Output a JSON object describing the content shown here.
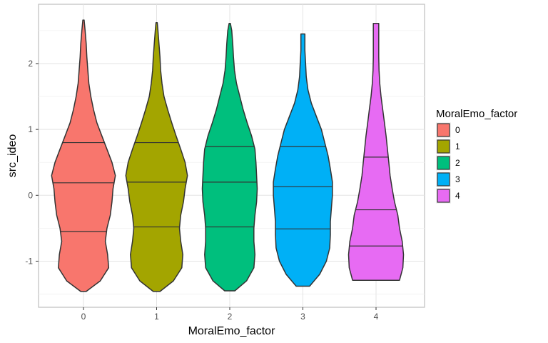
{
  "chart_data": {
    "type": "violin",
    "xlabel": "MoralEmo_factor",
    "ylabel": "src_ideo",
    "categories": [
      "0",
      "1",
      "2",
      "3",
      "4"
    ],
    "yticks": [
      -1,
      0,
      1,
      2
    ],
    "ylim": [
      -1.7,
      2.9
    ],
    "grid": true,
    "legend": {
      "title": "MoralEmo_factor",
      "position": "right",
      "entries": [
        "0",
        "1",
        "2",
        "3",
        "4"
      ]
    },
    "series": [
      {
        "category": "0",
        "color": "#F8766D",
        "min": -1.46,
        "max": 2.66,
        "quantiles": [
          -0.55,
          0.19,
          0.8
        ],
        "profile": [
          [
            -1.46,
            0.08
          ],
          [
            -1.3,
            0.5
          ],
          [
            -1.1,
            0.75
          ],
          [
            -0.9,
            0.72
          ],
          [
            -0.7,
            0.65
          ],
          [
            -0.5,
            0.7
          ],
          [
            -0.3,
            0.8
          ],
          [
            -0.1,
            0.85
          ],
          [
            0.1,
            0.88
          ],
          [
            0.3,
            0.95
          ],
          [
            0.5,
            0.85
          ],
          [
            0.7,
            0.7
          ],
          [
            0.9,
            0.55
          ],
          [
            1.1,
            0.4
          ],
          [
            1.3,
            0.3
          ],
          [
            1.5,
            0.22
          ],
          [
            1.7,
            0.16
          ],
          [
            1.9,
            0.13
          ],
          [
            2.1,
            0.1
          ],
          [
            2.3,
            0.08
          ],
          [
            2.5,
            0.05
          ],
          [
            2.66,
            0.02
          ]
        ]
      },
      {
        "category": "1",
        "color": "#A3A500",
        "min": -1.46,
        "max": 2.62,
        "quantiles": [
          -0.48,
          0.2,
          0.8
        ],
        "profile": [
          [
            -1.46,
            0.1
          ],
          [
            -1.3,
            0.5
          ],
          [
            -1.1,
            0.75
          ],
          [
            -0.9,
            0.78
          ],
          [
            -0.7,
            0.72
          ],
          [
            -0.5,
            0.68
          ],
          [
            -0.3,
            0.72
          ],
          [
            -0.1,
            0.8
          ],
          [
            0.1,
            0.85
          ],
          [
            0.3,
            0.92
          ],
          [
            0.5,
            0.85
          ],
          [
            0.7,
            0.72
          ],
          [
            0.9,
            0.58
          ],
          [
            1.1,
            0.45
          ],
          [
            1.3,
            0.33
          ],
          [
            1.5,
            0.22
          ],
          [
            1.7,
            0.16
          ],
          [
            1.9,
            0.12
          ],
          [
            2.1,
            0.1
          ],
          [
            2.3,
            0.07
          ],
          [
            2.5,
            0.04
          ],
          [
            2.62,
            0.02
          ]
        ]
      },
      {
        "category": "2",
        "color": "#00BF7D",
        "min": -1.45,
        "max": 2.61,
        "quantiles": [
          -0.48,
          0.2,
          0.74
        ],
        "profile": [
          [
            -1.45,
            0.15
          ],
          [
            -1.3,
            0.5
          ],
          [
            -1.1,
            0.72
          ],
          [
            -0.9,
            0.75
          ],
          [
            -0.7,
            0.72
          ],
          [
            -0.5,
            0.72
          ],
          [
            -0.3,
            0.75
          ],
          [
            -0.1,
            0.8
          ],
          [
            0.1,
            0.82
          ],
          [
            0.3,
            0.8
          ],
          [
            0.5,
            0.78
          ],
          [
            0.7,
            0.75
          ],
          [
            0.9,
            0.65
          ],
          [
            1.1,
            0.52
          ],
          [
            1.3,
            0.4
          ],
          [
            1.5,
            0.3
          ],
          [
            1.7,
            0.2
          ],
          [
            1.9,
            0.14
          ],
          [
            2.1,
            0.11
          ],
          [
            2.3,
            0.09
          ],
          [
            2.5,
            0.06
          ],
          [
            2.61,
            0.02
          ]
        ]
      },
      {
        "category": "3",
        "color": "#00B0F6",
        "min": -1.38,
        "max": 2.45,
        "quantiles": [
          -0.51,
          0.13,
          0.74
        ],
        "profile": [
          [
            -1.38,
            0.2
          ],
          [
            -1.2,
            0.5
          ],
          [
            -1.0,
            0.7
          ],
          [
            -0.8,
            0.8
          ],
          [
            -0.6,
            0.82
          ],
          [
            -0.4,
            0.82
          ],
          [
            -0.2,
            0.85
          ],
          [
            0.0,
            0.88
          ],
          [
            0.2,
            0.88
          ],
          [
            0.4,
            0.82
          ],
          [
            0.6,
            0.75
          ],
          [
            0.8,
            0.65
          ],
          [
            1.0,
            0.55
          ],
          [
            1.2,
            0.4
          ],
          [
            1.4,
            0.25
          ],
          [
            1.6,
            0.15
          ],
          [
            1.8,
            0.1
          ],
          [
            2.0,
            0.08
          ],
          [
            2.2,
            0.06
          ],
          [
            2.45,
            0.06
          ]
        ]
      },
      {
        "category": "4",
        "color": "#E76BF3",
        "min": -1.29,
        "max": 2.61,
        "quantiles": [
          -0.77,
          -0.22,
          0.58
        ],
        "profile": [
          [
            -1.29,
            0.7
          ],
          [
            -1.1,
            0.8
          ],
          [
            -0.9,
            0.82
          ],
          [
            -0.7,
            0.78
          ],
          [
            -0.5,
            0.7
          ],
          [
            -0.3,
            0.65
          ],
          [
            -0.1,
            0.55
          ],
          [
            0.1,
            0.48
          ],
          [
            0.3,
            0.42
          ],
          [
            0.5,
            0.38
          ],
          [
            0.7,
            0.34
          ],
          [
            0.9,
            0.3
          ],
          [
            1.1,
            0.25
          ],
          [
            1.3,
            0.2
          ],
          [
            1.5,
            0.15
          ],
          [
            1.7,
            0.11
          ],
          [
            1.9,
            0.09
          ],
          [
            2.1,
            0.08
          ],
          [
            2.3,
            0.08
          ],
          [
            2.5,
            0.08
          ],
          [
            2.61,
            0.08
          ]
        ]
      }
    ]
  }
}
